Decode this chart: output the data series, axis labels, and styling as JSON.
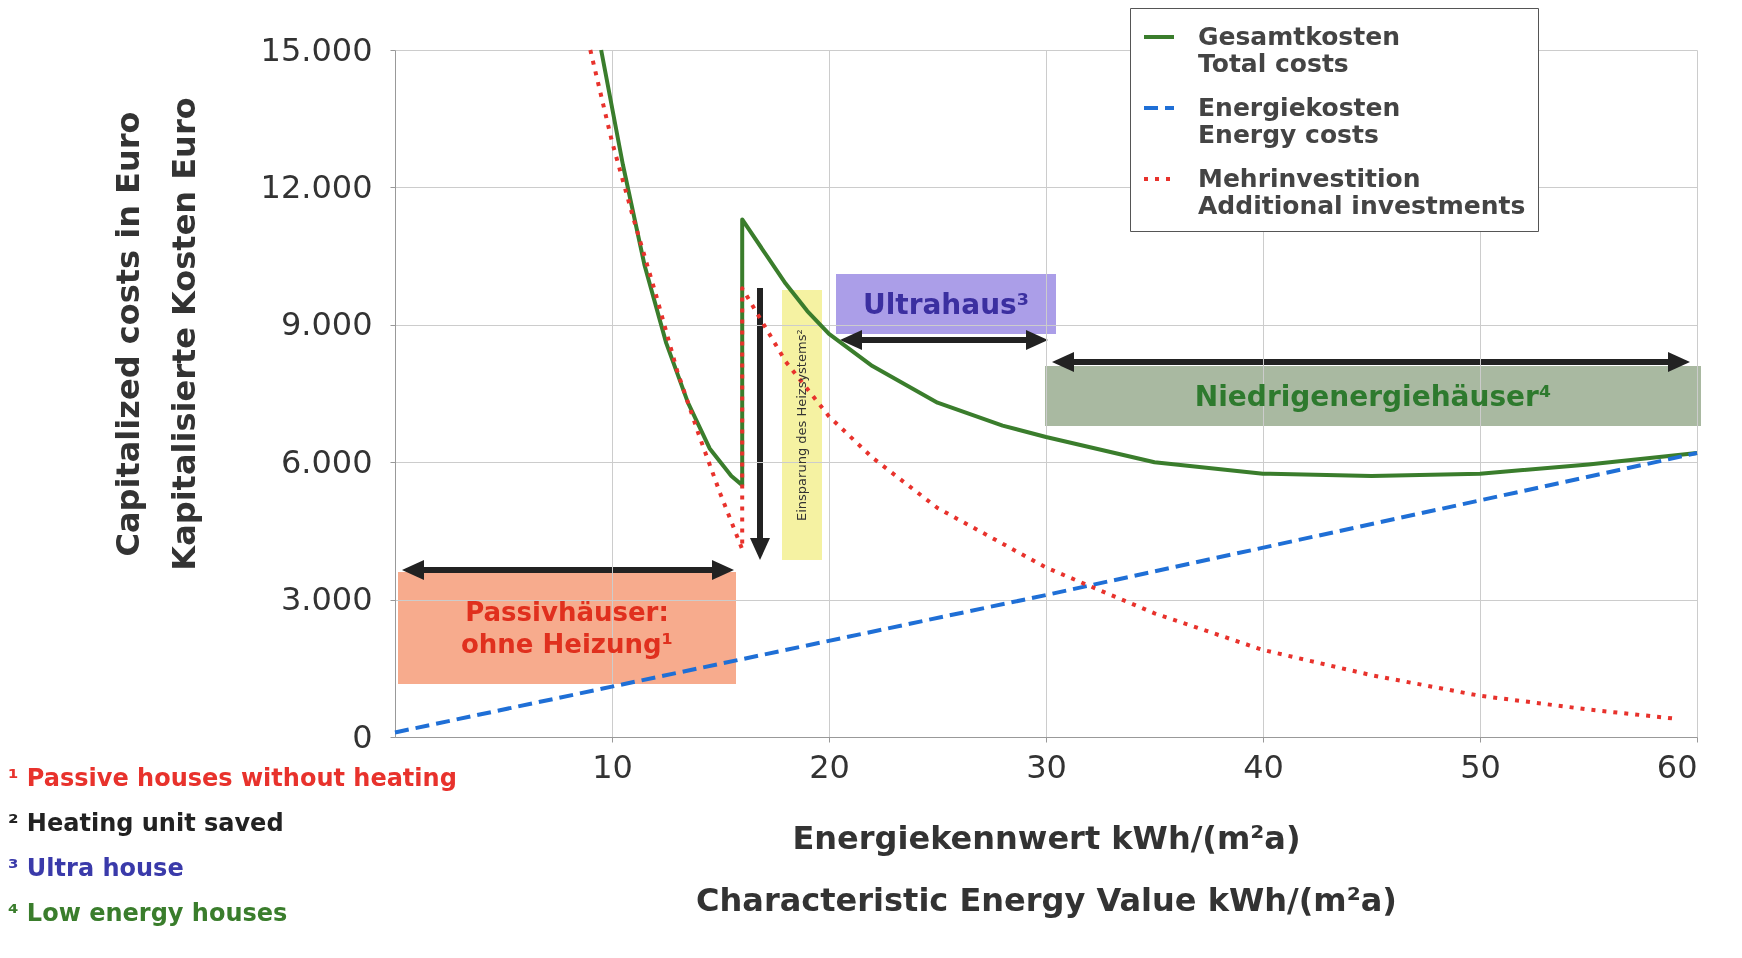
{
  "chart_data": {
    "type": "line",
    "xlabel": "Energiekennwert kWh/(m²a)\nCharacteristic Energy Value kWh/(m²a)",
    "ylabel": "Capitalized costs in Euro\nKapitalisierte Kosten Euro",
    "xlim": [
      0,
      60
    ],
    "xticks": [
      10,
      20,
      30,
      40,
      50,
      60
    ],
    "ylim": [
      0,
      15000
    ],
    "yticks": [
      {
        "value": 0,
        "label": "0"
      },
      {
        "value": 3000,
        "label": "3.000"
      },
      {
        "value": 6000,
        "label": "6.000"
      },
      {
        "value": 9000,
        "label": "9.000"
      },
      {
        "value": 12000,
        "label": "12.000"
      },
      {
        "value": 15000,
        "label": "15.000"
      }
    ],
    "grid": true,
    "legend": "top right",
    "series": [
      {
        "name": "Gesamtkosten\nTotal costs",
        "color": "#3a7d2c",
        "line_style": "solid",
        "x": [
          9.5,
          10.5,
          11.5,
          12.5,
          13.5,
          14.5,
          15.5,
          16,
          16,
          17,
          18,
          19,
          20,
          22,
          25,
          28,
          30,
          35,
          40,
          45,
          50,
          55,
          60
        ],
        "values": [
          15000,
          12500,
          10300,
          8600,
          7300,
          6300,
          5700,
          5500,
          11300,
          10600,
          9900,
          9300,
          8800,
          8100,
          7300,
          6800,
          6550,
          6000,
          5750,
          5700,
          5750,
          5950,
          6200
        ]
      },
      {
        "name": "Energiekosten\nEnergy costs",
        "color": "#1f6fd6",
        "line_style": "dashed",
        "x": [
          0,
          16,
          30,
          60
        ],
        "values": [
          100,
          1700,
          3100,
          6200
        ]
      },
      {
        "name": "Mehrinvestition\nAdditional investments",
        "color": "#e8322c",
        "line_style": "dotted",
        "x": [
          9,
          10,
          11,
          12,
          13,
          14,
          15,
          16,
          16,
          17,
          18,
          20,
          22,
          25,
          30,
          35,
          40,
          45,
          50,
          55,
          59
        ],
        "values": [
          15000,
          13000,
          11300,
          9700,
          8000,
          6600,
          5300,
          4100,
          9800,
          9000,
          8200,
          7000,
          6100,
          5000,
          3700,
          2700,
          1900,
          1350,
          900,
          600,
          400
        ]
      }
    ],
    "annotations": [
      "Passivhäuser:\nohne Heizung¹",
      "Einsparung des Heizsystems²",
      "Ultrahaus³",
      "Niedrigenergiehäuser⁴",
      "¹ Passive houses without heating",
      "² Heating unit saved",
      "³ Ultra house",
      "⁴ Low energy houses"
    ]
  }
}
